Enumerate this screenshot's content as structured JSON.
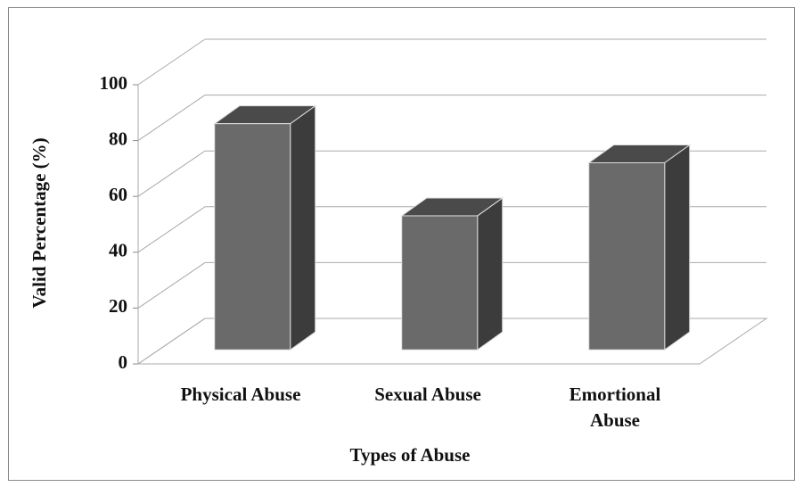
{
  "chart_data": {
    "type": "bar3d",
    "x_label": "Types of Abuse",
    "y_label": "Valid Percentage (%)",
    "categories": [
      "Physical Abuse",
      "Sexual Abuse",
      "Emortional Abuse"
    ],
    "values": [
      81,
      48,
      67
    ],
    "color": "#6a6a6a",
    "ylim": [
      0,
      100
    ],
    "yticks": [
      0,
      20,
      40,
      60,
      80,
      100
    ],
    "grid": true
  }
}
